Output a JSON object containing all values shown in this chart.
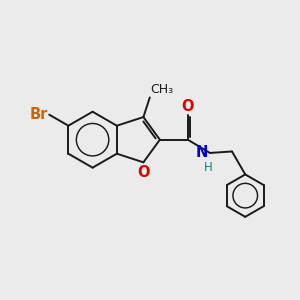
{
  "background_color": "#ebebeb",
  "bond_color": "#1a1a1a",
  "bond_width": 1.4,
  "atom_colors": {
    "Br": "#cc6600",
    "O": "#dd0000",
    "N": "#0000cc",
    "H": "#008888",
    "C": "#1a1a1a"
  },
  "font_size_atom": 10.5,
  "font_size_small": 8.5,
  "font_size_methyl": 9
}
